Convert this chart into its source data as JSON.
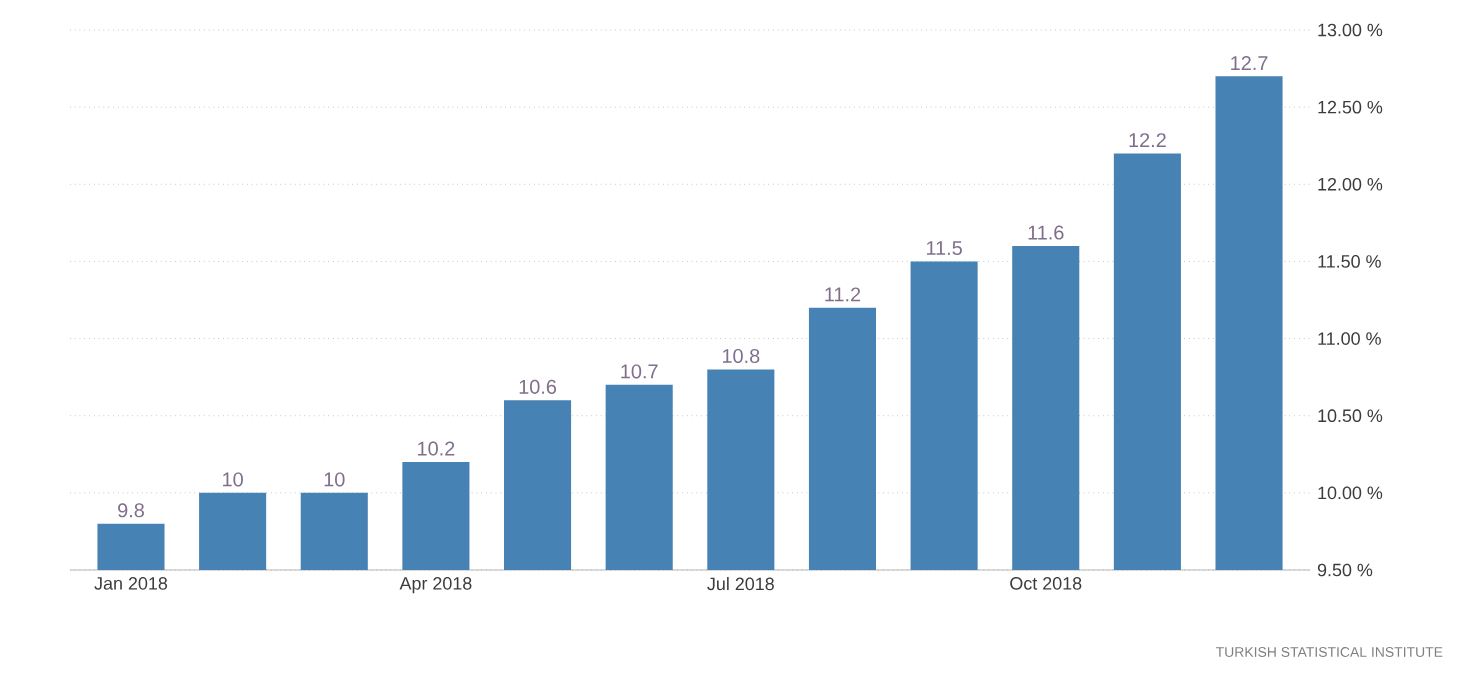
{
  "chart_data": {
    "type": "bar",
    "categories": [
      "Jan 2018",
      null,
      null,
      "Apr 2018",
      null,
      null,
      "Jul 2018",
      null,
      null,
      "Oct 2018",
      null,
      null
    ],
    "values": [
      9.8,
      10,
      10,
      10.2,
      10.6,
      10.7,
      10.8,
      11.2,
      11.5,
      11.6,
      12.2,
      12.7
    ],
    "color": "#4682b4",
    "data_labels": true,
    "ylim": [
      9.5,
      13.0
    ],
    "yticks": [
      {
        "value": 9.5,
        "label": "9.50 %"
      },
      {
        "value": 10.0,
        "label": "10.00 %"
      },
      {
        "value": 10.5,
        "label": "10.50 %"
      },
      {
        "value": 11.0,
        "label": "11.00 %"
      },
      {
        "value": 11.5,
        "label": "11.50 %"
      },
      {
        "value": 12.0,
        "label": "12.00 %"
      },
      {
        "value": 12.5,
        "label": "12.50 %"
      },
      {
        "value": 13.0,
        "label": "13.00 %"
      }
    ],
    "grid": "y",
    "annotations": [
      "TURKISH STATISTICAL INSTITUTE"
    ]
  }
}
